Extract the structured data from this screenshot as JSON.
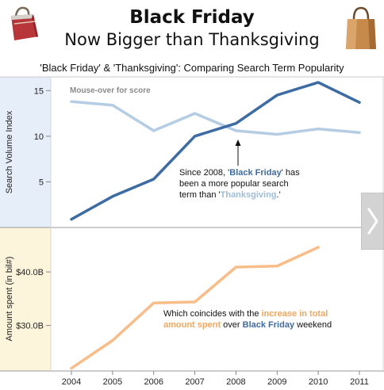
{
  "header": {
    "title_line1": "Black Friday",
    "title_line2": "Now Bigger than Thanksgiving",
    "subtitle": "'Black Friday' & 'Thanksgiving': Comparing Search Term Popularity"
  },
  "top_panel": {
    "hint": "Mouse-over for score",
    "annotation": {
      "p1": "Since 2008, '",
      "bf": "Black Friday",
      "p2": "' has been a more popular search term than '",
      "tg": "Thanksgiving",
      "p3": ".'"
    }
  },
  "bottom_panel": {
    "annotation": {
      "p1": "Which coincides with the ",
      "hl": "increase in total amount spent",
      "p2": " over ",
      "bf": "Black Friday",
      "p3": " weekend"
    }
  },
  "colors": {
    "black_friday": "#3d6ba3",
    "thanksgiving": "#b5cde4",
    "spending": "#f8bd88",
    "top_bg": "#e6eef9",
    "bottom_bg": "#fdf4dc"
  },
  "icons": [
    "shopping-bag-icon",
    "paper-bag-icon",
    "chevron-right-icon"
  ],
  "chart_data": [
    {
      "type": "line",
      "x": [
        2004,
        2005,
        2006,
        2007,
        2008,
        2009,
        2010,
        2011
      ],
      "ylabel": "Search Volume Index",
      "ylim": [
        0,
        16.5
      ],
      "yticks": [
        5,
        10,
        15
      ],
      "grid": false,
      "series": [
        {
          "name": "Black Friday",
          "values": [
            0.9,
            3.4,
            5.3,
            10.0,
            11.4,
            14.5,
            15.9,
            13.7
          ]
        },
        {
          "name": "Thanksgiving",
          "values": [
            13.8,
            13.4,
            10.6,
            12.5,
            10.6,
            10.2,
            10.8,
            10.4
          ]
        }
      ]
    },
    {
      "type": "line",
      "x": [
        2004,
        2005,
        2006,
        2007,
        2008,
        2009,
        2010
      ],
      "ylabel": "Amount spent (in bil#)",
      "ylim": [
        21.5,
        48.3
      ],
      "yticks": [
        30,
        40
      ],
      "yticklabels": [
        "$30.0B",
        "$40.0B"
      ],
      "grid": false,
      "series": [
        {
          "values": [
            22.0,
            27.2,
            34.2,
            34.4,
            40.9,
            41.1,
            44.6
          ]
        }
      ]
    }
  ],
  "x_tick_labels": [
    "2004",
    "2005",
    "2006",
    "2007",
    "2008",
    "2009",
    "2010",
    "2011"
  ]
}
